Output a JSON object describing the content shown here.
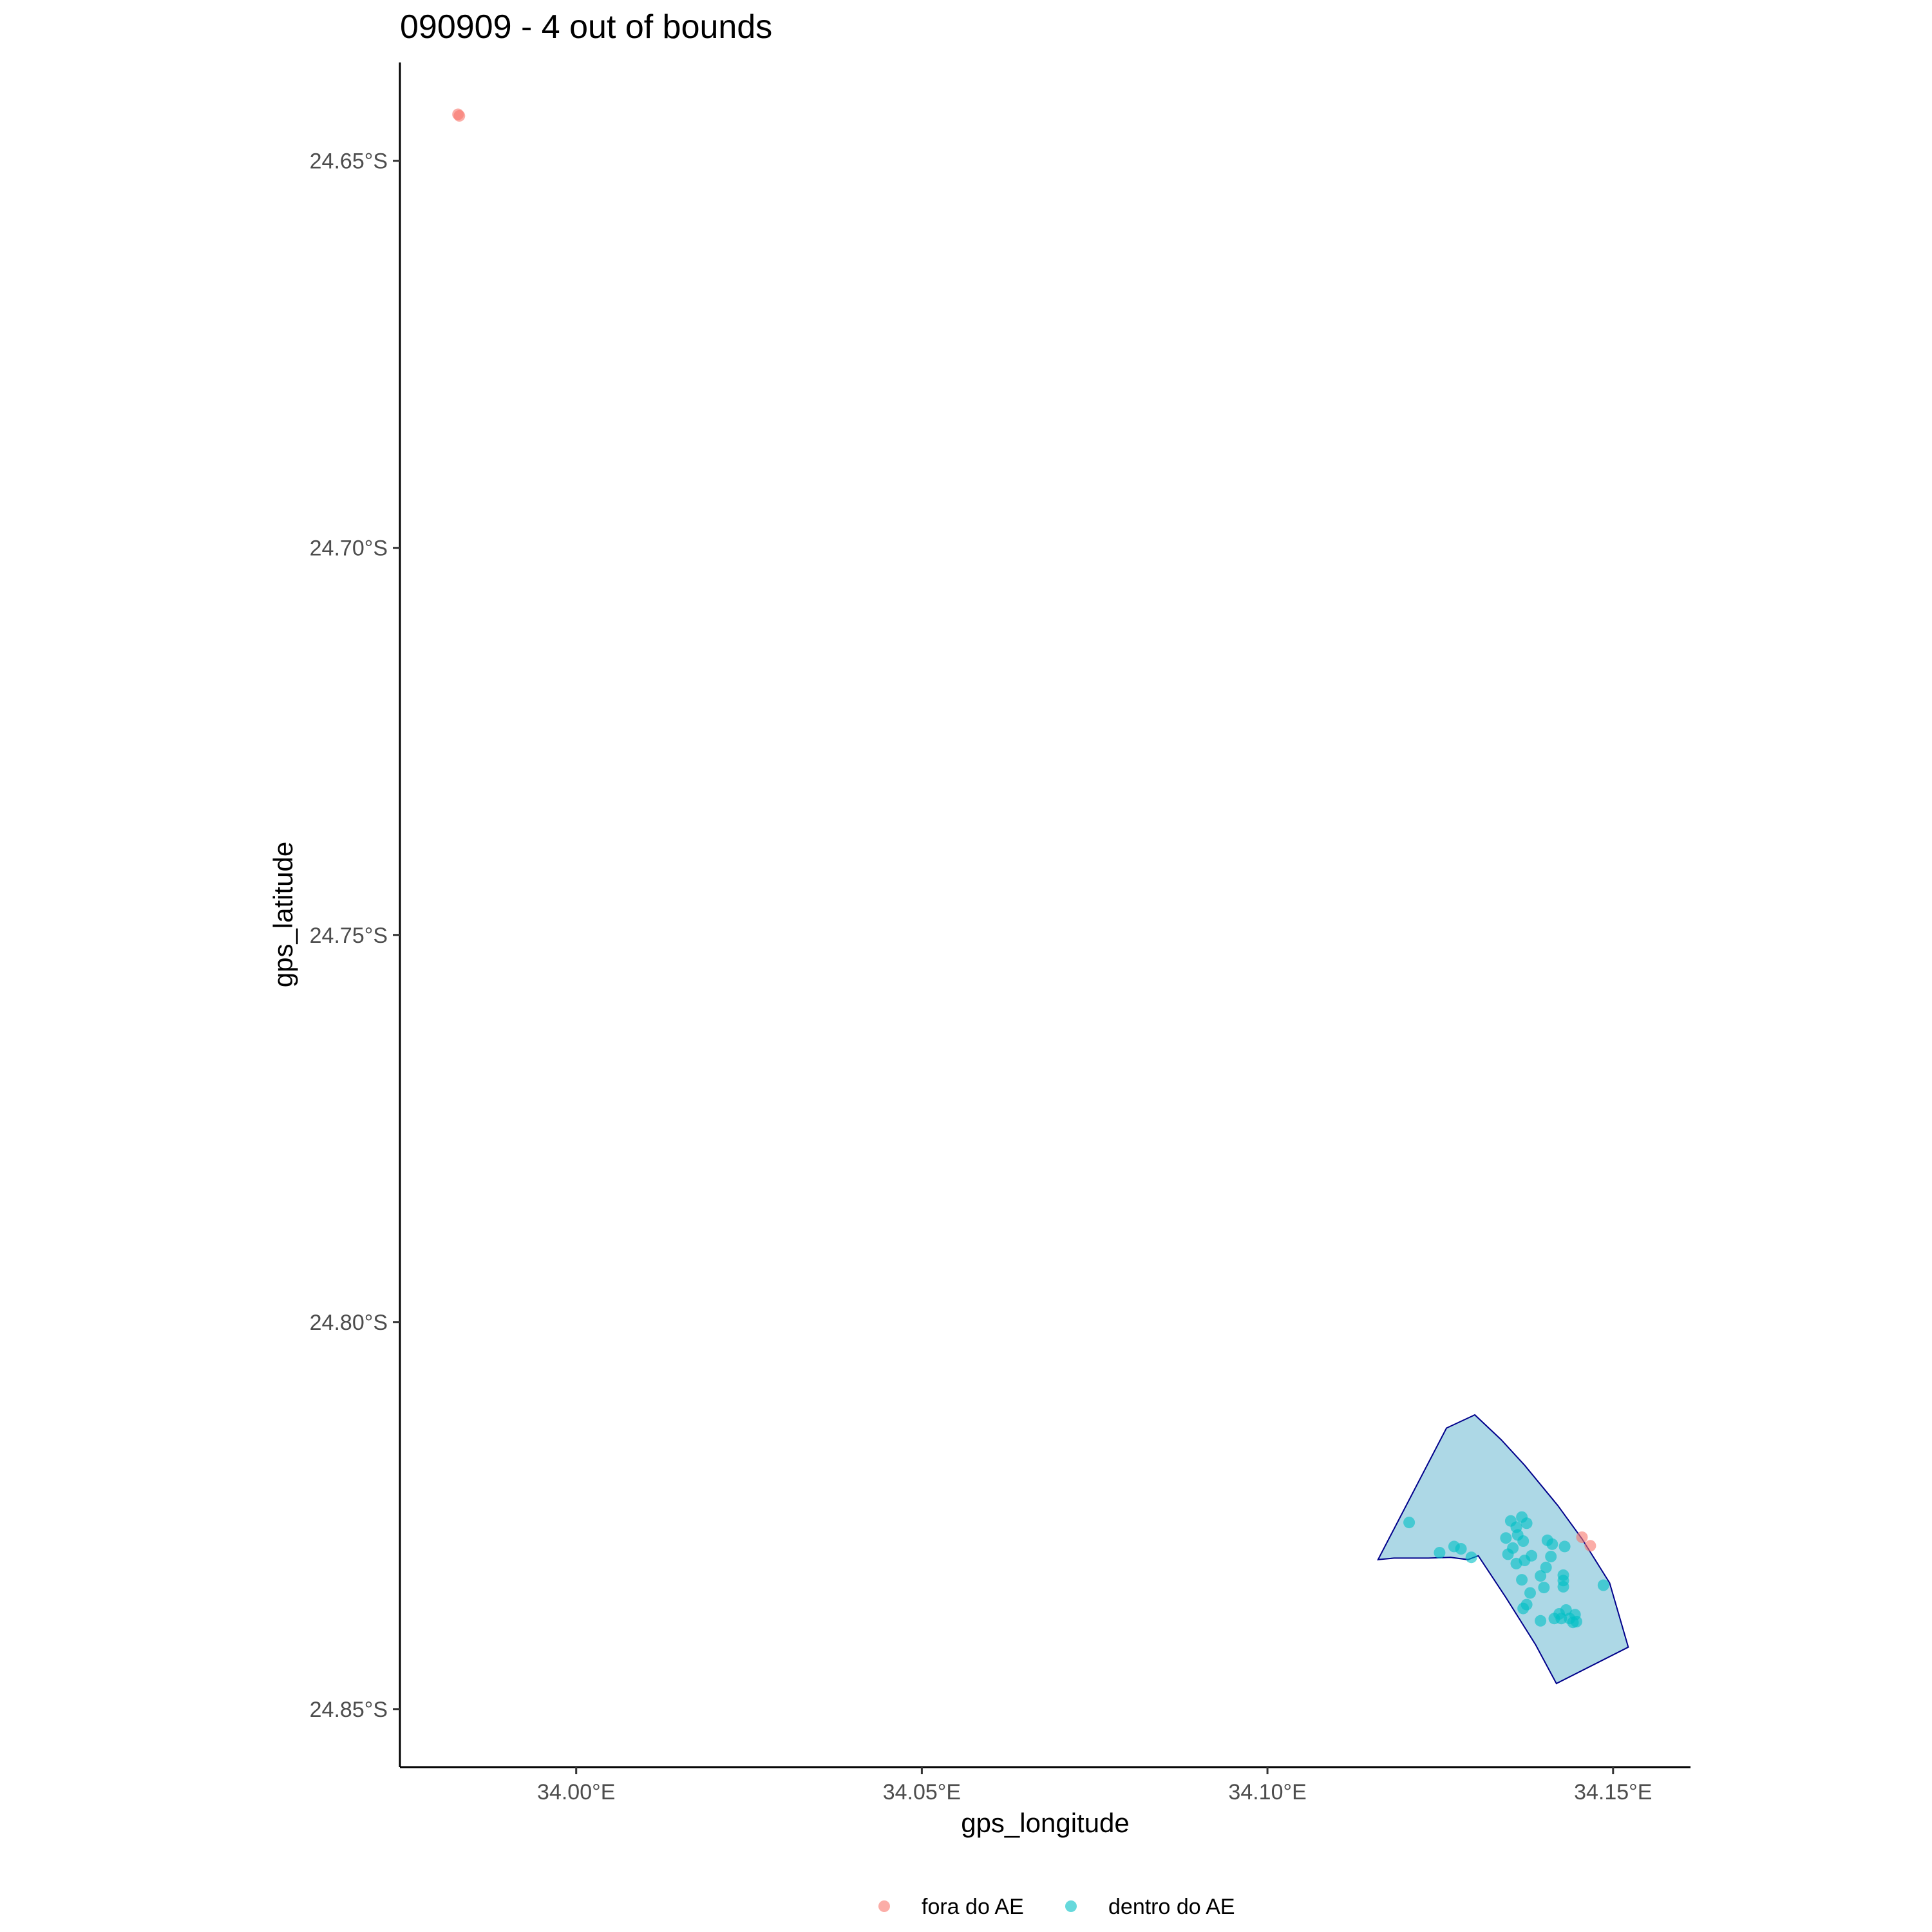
{
  "chart_data": {
    "type": "scatter",
    "title": "090909 - 4 out of bounds",
    "xlabel": "gps_longitude",
    "ylabel": "gps_latitude",
    "xlim": [
      33.9745,
      34.1612
    ],
    "ylim": [
      -24.8575,
      -24.6373
    ],
    "x_ticks": [
      {
        "value": 34.0,
        "label": "34.00°E"
      },
      {
        "value": 34.05,
        "label": "34.05°E"
      },
      {
        "value": 34.1,
        "label": "34.10°E"
      },
      {
        "value": 34.15,
        "label": "34.15°E"
      }
    ],
    "y_ticks": [
      {
        "value": -24.65,
        "label": "24.65°S"
      },
      {
        "value": -24.7,
        "label": "24.70°S"
      },
      {
        "value": -24.75,
        "label": "24.75°S"
      },
      {
        "value": -24.8,
        "label": "24.80°S"
      },
      {
        "value": -24.85,
        "label": "24.85°S"
      }
    ],
    "grid": false,
    "legend_position": "bottom",
    "area_polygon": {
      "fill": "#add8e6",
      "stroke": "#00008b",
      "points": [
        [
          34.116,
          -24.8307
        ],
        [
          34.1183,
          -24.8305
        ],
        [
          34.1233,
          -24.8305
        ],
        [
          34.1265,
          -24.8304
        ],
        [
          34.129,
          -24.8307
        ],
        [
          34.1305,
          -24.8302
        ],
        [
          34.1345,
          -24.8356
        ],
        [
          34.1388,
          -24.8417
        ],
        [
          34.1418,
          -24.8467
        ],
        [
          34.1522,
          -24.842
        ],
        [
          34.1495,
          -24.8337
        ],
        [
          34.1455,
          -24.828
        ],
        [
          34.142,
          -24.8237
        ],
        [
          34.1372,
          -24.8185
        ],
        [
          34.1338,
          -24.8152
        ],
        [
          34.13,
          -24.812
        ],
        [
          34.1259,
          -24.8137
        ]
      ]
    },
    "series": [
      {
        "name": "fora do AE",
        "color": "#f8766d",
        "points": [
          [
            33.9829,
            -24.644
          ],
          [
            33.9831,
            -24.6442
          ],
          [
            34.1455,
            -24.8278
          ],
          [
            34.1467,
            -24.8289
          ]
        ]
      },
      {
        "name": "dentro do AE",
        "color": "#00bfc4",
        "points": [
          [
            34.1205,
            -24.8259
          ],
          [
            34.1249,
            -24.8298
          ],
          [
            34.127,
            -24.829
          ],
          [
            34.128,
            -24.8293
          ],
          [
            34.1295,
            -24.8304
          ],
          [
            34.1345,
            -24.8279
          ],
          [
            34.1352,
            -24.8257
          ],
          [
            34.136,
            -24.8265
          ],
          [
            34.1368,
            -24.8252
          ],
          [
            34.1375,
            -24.826
          ],
          [
            34.1362,
            -24.8275
          ],
          [
            34.137,
            -24.8283
          ],
          [
            34.1355,
            -24.8292
          ],
          [
            34.1348,
            -24.83
          ],
          [
            34.1372,
            -24.8308
          ],
          [
            34.1382,
            -24.8302
          ],
          [
            34.136,
            -24.8312
          ],
          [
            34.1368,
            -24.8333
          ],
          [
            34.1405,
            -24.8282
          ],
          [
            34.1412,
            -24.8287
          ],
          [
            34.143,
            -24.829
          ],
          [
            34.141,
            -24.8303
          ],
          [
            34.1403,
            -24.8317
          ],
          [
            34.1395,
            -24.8328
          ],
          [
            34.14,
            -24.8343
          ],
          [
            34.138,
            -24.835
          ],
          [
            34.137,
            -24.837
          ],
          [
            34.1375,
            -24.8365
          ],
          [
            34.1395,
            -24.8386
          ],
          [
            34.1415,
            -24.8383
          ],
          [
            34.1422,
            -24.8377
          ],
          [
            34.1425,
            -24.8383
          ],
          [
            34.1432,
            -24.8372
          ],
          [
            34.1437,
            -24.8383
          ],
          [
            34.1442,
            -24.8388
          ],
          [
            34.1445,
            -24.8378
          ],
          [
            34.1447,
            -24.8387
          ],
          [
            34.1428,
            -24.8334
          ],
          [
            34.1428,
            -24.8342
          ],
          [
            34.1428,
            -24.8327
          ],
          [
            34.1486,
            -24.834
          ]
        ]
      }
    ]
  }
}
